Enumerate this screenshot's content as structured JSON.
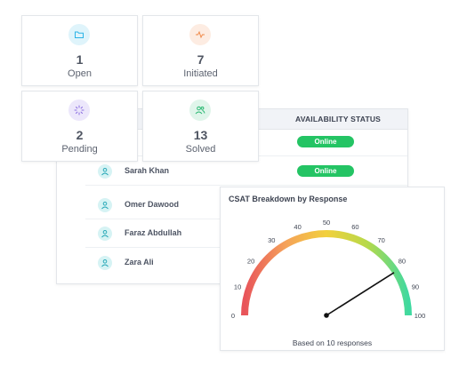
{
  "stats": [
    {
      "value": "1",
      "label": "Open",
      "icon": "folder-icon",
      "icon_color": "#2bb3e6",
      "icon_bg": "#dff4fb"
    },
    {
      "value": "7",
      "label": "Initiated",
      "icon": "activity-icon",
      "icon_color": "#f08a4b",
      "icon_bg": "#fdece2"
    },
    {
      "value": "2",
      "label": "Pending",
      "icon": "loader-icon",
      "icon_color": "#8b6fe0",
      "icon_bg": "#ece7fb"
    },
    {
      "value": "13",
      "label": "Solved",
      "icon": "users-icon",
      "icon_color": "#2ab872",
      "icon_bg": "#dff5ea"
    }
  ],
  "agents": {
    "status_header": "AVAILABILITY STATUS",
    "online_label": "Online",
    "online_color": "#24c464",
    "rows": [
      {
        "name": "Sarah Khan",
        "status": "Online"
      },
      {
        "name": "Omer Dawood"
      },
      {
        "name": "Faraz Abdullah"
      },
      {
        "name": "Zara Ali"
      }
    ],
    "first_row_status": "Online"
  },
  "gauge": {
    "title": "CSAT Breakdown by Response",
    "footer": "Based on 10 responses",
    "min": 0,
    "max": 100,
    "ticks": [
      "0",
      "10",
      "20",
      "30",
      "40",
      "50",
      "60",
      "70",
      "80",
      "90",
      "100"
    ],
    "value": 82,
    "gradient": [
      "#e8545a",
      "#f5a25a",
      "#f2d03c",
      "#b6d94a",
      "#3fd9a0"
    ]
  }
}
